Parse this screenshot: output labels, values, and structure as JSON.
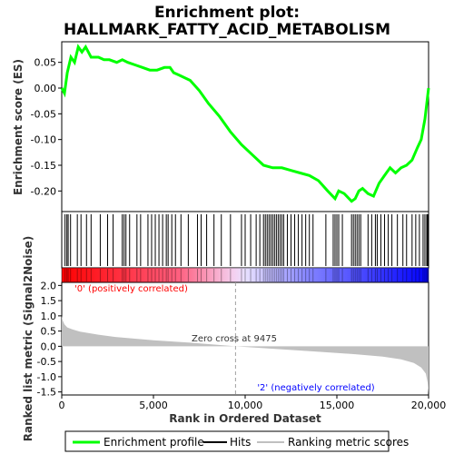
{
  "chart_data": {
    "type": "line",
    "title_line1": "Enrichment plot:",
    "title_line2": "HALLMARK_FATTY_ACID_METABOLISM",
    "es_panel": {
      "ylabel": "Enrichment score (ES)",
      "ylim": [
        -0.24,
        0.09
      ],
      "yticks": [
        0.05,
        0.0,
        -0.05,
        -0.1,
        -0.15,
        -0.2
      ],
      "ytick_labels": [
        "0.05",
        "0.00",
        "-0.05",
        "-0.10",
        "-0.15",
        "-0.20"
      ],
      "series_color": "#00ff00",
      "x": [
        0,
        150,
        300,
        500,
        700,
        900,
        1100,
        1300,
        1450,
        1600,
        1800,
        2000,
        2300,
        2600,
        3000,
        3300,
        3600,
        4000,
        4400,
        4800,
        5200,
        5600,
        5900,
        6100,
        6400,
        7000,
        7500,
        8000,
        8600,
        9200,
        9800,
        10400,
        11000,
        11500,
        12000,
        12500,
        13000,
        13500,
        14000,
        14500,
        14900,
        15100,
        15400,
        15800,
        16000,
        16200,
        16400,
        16700,
        17000,
        17300,
        17600,
        17900,
        18200,
        18500,
        18800,
        19100,
        19400,
        19600,
        19800,
        19900,
        20000
      ],
      "es": [
        0.0,
        -0.01,
        0.03,
        0.06,
        0.05,
        0.08,
        0.07,
        0.08,
        0.07,
        0.06,
        0.06,
        0.06,
        0.055,
        0.055,
        0.05,
        0.055,
        0.05,
        0.045,
        0.04,
        0.035,
        0.035,
        0.04,
        0.04,
        0.03,
        0.025,
        0.015,
        -0.005,
        -0.03,
        -0.055,
        -0.085,
        -0.11,
        -0.13,
        -0.15,
        -0.155,
        -0.155,
        -0.16,
        -0.165,
        -0.17,
        -0.18,
        -0.2,
        -0.215,
        -0.2,
        -0.205,
        -0.22,
        -0.215,
        -0.2,
        -0.195,
        -0.205,
        -0.21,
        -0.185,
        -0.17,
        -0.155,
        -0.165,
        -0.155,
        -0.15,
        -0.14,
        -0.115,
        -0.1,
        -0.06,
        -0.03,
        0.0
      ]
    },
    "hits": {
      "label": "Hits",
      "positions": [
        180,
        280,
        350,
        480,
        850,
        1050,
        1350,
        1600,
        2100,
        2500,
        2800,
        3300,
        3400,
        3500,
        3700,
        4100,
        4300,
        4700,
        4900,
        5100,
        5300,
        5500,
        5700,
        5800,
        6000,
        6200,
        6500,
        6900,
        7400,
        7600,
        7900,
        8300,
        8700,
        9200,
        9800,
        10000,
        10300,
        10600,
        10800,
        11000,
        11100,
        11200,
        11300,
        11400,
        11500,
        11600,
        11700,
        11800,
        11900,
        12000,
        12100,
        12300,
        12500,
        12700,
        12900,
        13100,
        13300,
        13500,
        13700,
        14400,
        14800,
        14900,
        15000,
        15100,
        15300,
        15800,
        15900,
        16000,
        16100,
        16200,
        16300,
        16700,
        16900,
        17100,
        17200,
        17400,
        17600,
        17800,
        18000,
        18300,
        18600,
        18800,
        19100,
        19300,
        19500,
        19700,
        19800,
        19900,
        19950
      ]
    },
    "metric_panel": {
      "ylabel": "Ranked list metric (Signal2Noise)",
      "ylim": [
        -1.6,
        2.1
      ],
      "yticks": [
        2.0,
        1.5,
        1.0,
        0.5,
        0.0,
        -0.5,
        -1.0,
        -1.5
      ],
      "ytick_labels": [
        "2.0",
        "1.5",
        "1.0",
        "0.5",
        "0.0",
        "-0.5",
        "-1.0",
        "-1.5"
      ],
      "profile_x": [
        0,
        50,
        150,
        300,
        600,
        1000,
        2000,
        3000,
        5000,
        7000,
        9475,
        12000,
        14000,
        16000,
        17500,
        18500,
        19200,
        19600,
        19850,
        19950,
        20000
      ],
      "profile_y": [
        1.0,
        0.85,
        0.72,
        0.62,
        0.55,
        0.48,
        0.38,
        0.3,
        0.2,
        0.12,
        0.0,
        -0.1,
        -0.18,
        -0.26,
        -0.34,
        -0.43,
        -0.55,
        -0.7,
        -0.9,
        -1.2,
        -1.55
      ],
      "fill_color": "#c0c0c0",
      "zero_cross_label": "Zero cross at 9475",
      "zero_cross": 9475,
      "pos_label": "'0' (positively correlated)",
      "neg_label": "'2' (negatively correlated)",
      "pos_color": "#ff0000",
      "neg_color": "#0000ff"
    },
    "xaxis": {
      "xlabel": "Rank in Ordered Dataset",
      "xlim": [
        0,
        20000
      ],
      "xticks": [
        0,
        5000,
        10000,
        15000,
        20000
      ],
      "xtick_labels": [
        "0",
        "5,000",
        "10,000",
        "15,000",
        "20,000"
      ]
    },
    "legend": {
      "entries": [
        "Enrichment profile",
        "Hits",
        "Ranking metric scores"
      ],
      "colors": [
        "#00ff00",
        "#000000",
        "#c0c0c0"
      ],
      "placement": "bottom"
    }
  }
}
